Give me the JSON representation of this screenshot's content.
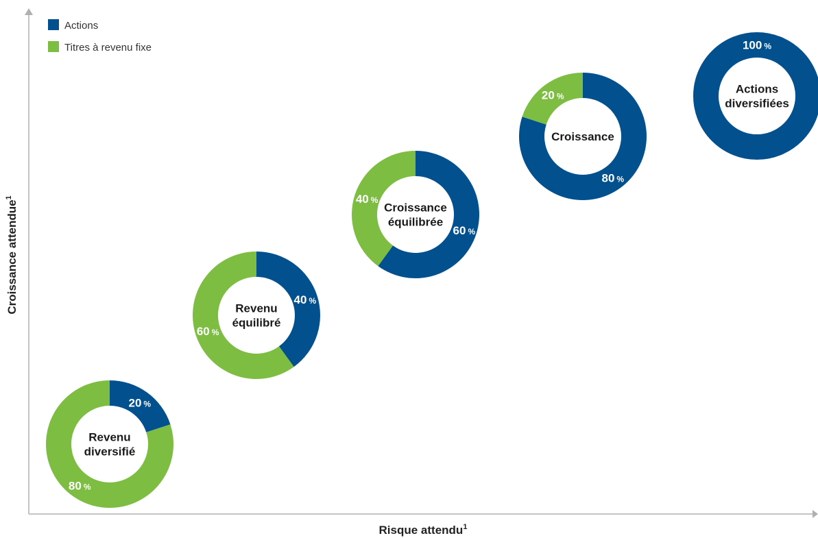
{
  "chart_data": {
    "type": "pie",
    "xlabel": "Risque attendu",
    "xlabel_sup": "1",
    "ylabel": "Croissance attendue",
    "ylabel_sup": "1",
    "legend": [
      {
        "name": "Actions",
        "color": "#03508e"
      },
      {
        "name": "Titres à revenu fixe",
        "color": "#7dbd42"
      }
    ],
    "legend_position": "top-left",
    "percent_sign": "%",
    "series": [
      {
        "name": "Revenu diversifié",
        "label_lines": [
          "Revenu",
          "diversifié"
        ],
        "actions": 20,
        "fixed_income": 80
      },
      {
        "name": "Revenu équilibré",
        "label_lines": [
          "Revenu",
          "équilibré"
        ],
        "actions": 40,
        "fixed_income": 60
      },
      {
        "name": "Croissance équilibrée",
        "label_lines": [
          "Croissance",
          "équilibrée"
        ],
        "actions": 60,
        "fixed_income": 40
      },
      {
        "name": "Croissance",
        "label_lines": [
          "Croissance"
        ],
        "actions": 80,
        "fixed_income": 20
      },
      {
        "name": "Actions diversifiées",
        "label_lines": [
          "Actions",
          "diversifiées"
        ],
        "actions": 100,
        "fixed_income": 0
      }
    ]
  }
}
